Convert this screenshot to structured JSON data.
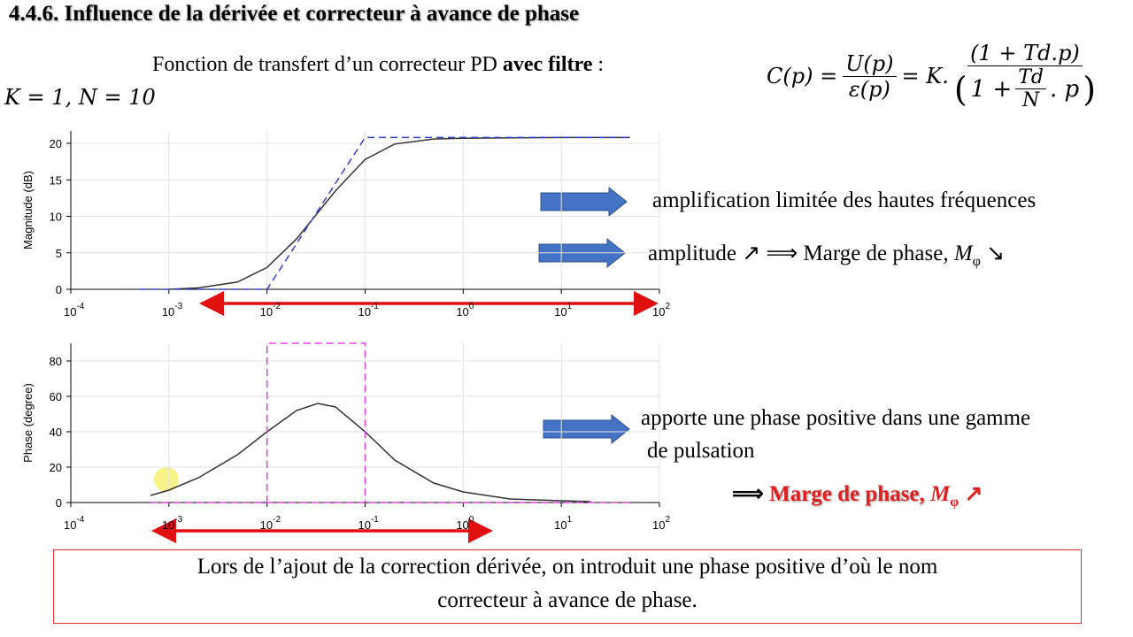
{
  "header": {
    "title": "4.4.6. Influence de la dérivée et correcteur à avance de phase"
  },
  "intro": {
    "text": "Fonction de transfert d’un correcteur PD ",
    "bold": "avec filtre",
    "suffix": " :"
  },
  "params": "K = 1, N = 10",
  "formula": {
    "lhs": "C(p) =",
    "num1": "U(p)",
    "den1": "ε(p)",
    "mid": "= K.",
    "num2": "(1 + Td.p)",
    "den2_pre": "1 +",
    "den2_num": "Td",
    "den2_den": "N",
    "den2_post": ". p"
  },
  "annotations": {
    "a1": "amplification limitée des hautes fréquences",
    "a2": {
      "text": "amplitude ↗ ⟹ Marge de phase, ",
      "m": "M",
      "sub": "φ",
      "end": " ↘"
    },
    "a3": {
      "line1": "apporte une phase positive dans une gamme",
      "line2": "de pulsation"
    },
    "a4": {
      "arrow": "⟹ ",
      "text": "Marge de phase, ",
      "m": "M",
      "sub": "φ",
      "end": " ↗"
    }
  },
  "conclusion": {
    "line1": "Lors de l’ajout de la correction dérivée, on introduit une phase positive d’où le nom",
    "line2": "correcteur à avance de phase."
  },
  "chart_data": [
    {
      "type": "line",
      "ylabel": "Magnitude (dB)",
      "xscale": "log",
      "grid": true,
      "xlim": [
        0.0001,
        100
      ],
      "ylim": [
        0,
        21.7
      ],
      "xticks": [
        {
          "value": 0.0001,
          "label": "10",
          "exponent": "-4"
        },
        {
          "value": 0.001,
          "label": "10",
          "exponent": "-3"
        },
        {
          "value": 0.01,
          "label": "10",
          "exponent": "-2"
        },
        {
          "value": 0.1,
          "label": "10",
          "exponent": "-1"
        },
        {
          "value": 1,
          "label": "10",
          "exponent": "0"
        },
        {
          "value": 10,
          "label": "10",
          "exponent": "1"
        },
        {
          "value": 100,
          "label": "10",
          "exponent": "2"
        }
      ],
      "yticks": [
        0,
        5,
        10,
        15,
        20
      ],
      "series": [
        {
          "color": "#333333",
          "x": [
            0.001,
            0.002,
            0.005,
            0.01,
            0.02,
            0.05,
            0.1,
            0.2,
            0.5,
            1,
            10,
            50
          ],
          "values": [
            0.0,
            0.2,
            1.0,
            3.0,
            6.9,
            13.5,
            17.8,
            19.9,
            20.6,
            20.7,
            20.8,
            20.8
          ]
        },
        {
          "color": "#3340c8",
          "dashed": true,
          "x": [
            0.0005,
            0.01,
            0.1,
            50
          ],
          "values": [
            0,
            0,
            20.8,
            20.8
          ]
        }
      ]
    },
    {
      "type": "line",
      "ylabel": "Phase (degree)",
      "xscale": "log",
      "grid": true,
      "xlim": [
        0.0001,
        100
      ],
      "ylim": [
        0,
        90
      ],
      "xticks": [
        {
          "value": 0.0001,
          "label": "10",
          "exponent": "-4"
        },
        {
          "value": 0.001,
          "label": "10",
          "exponent": "-3"
        },
        {
          "value": 0.01,
          "label": "10",
          "exponent": "-2"
        },
        {
          "value": 0.1,
          "label": "10",
          "exponent": "-1"
        },
        {
          "value": 1,
          "label": "10",
          "exponent": "0"
        },
        {
          "value": 10,
          "label": "10",
          "exponent": "1"
        },
        {
          "value": 100,
          "label": "10",
          "exponent": "2"
        }
      ],
      "yticks": [
        0,
        20,
        40,
        60,
        80
      ],
      "series": [
        {
          "color": "#333333",
          "x": [
            0.00065,
            0.001,
            0.002,
            0.005,
            0.01,
            0.02,
            0.033,
            0.05,
            0.1,
            0.2,
            0.5,
            1,
            3,
            10,
            20
          ],
          "values": [
            4,
            7,
            14,
            27,
            40,
            52,
            56,
            54,
            40,
            24,
            11,
            6,
            2,
            1,
            0.5
          ]
        },
        {
          "color": "#e040e0",
          "dashed": true,
          "x": [
            0.01,
            0.01,
            0.1,
            0.1
          ],
          "values": [
            0,
            90,
            90,
            0
          ]
        },
        {
          "color": "#e040e0",
          "dashed": true,
          "x": [
            0.00065,
            50
          ],
          "values": [
            0,
            0
          ]
        }
      ]
    }
  ]
}
